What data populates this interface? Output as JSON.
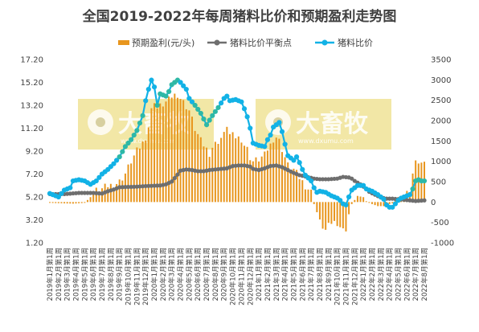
{
  "chart_data": {
    "type": "bar+line",
    "title": "全国2019-2022年每周猪料比价和预期盈利走势图",
    "legend": [
      "预期盈利(元/头)",
      "猪料比价平衡点",
      "猪料比价"
    ],
    "legend_position": "top",
    "colors": {
      "profit": "#E8961E",
      "breakeven": "#6E6E6E",
      "ratio": "#12B2E6",
      "ratio_fill": "#2EB8A6",
      "watermark_bg": "#F2E7A6"
    },
    "left_axis": {
      "ticks": [
        "1.20",
        "3.20",
        "5.20",
        "7.20",
        "9.20",
        "11.20",
        "13.20",
        "15.20",
        "17.20"
      ],
      "min": 1.2,
      "max": 17.2
    },
    "right_axis": {
      "ticks": [
        "-1000",
        "-500",
        "0",
        "500",
        "1000",
        "1500",
        "2000",
        "2500",
        "3000",
        "3500"
      ],
      "min": -1000,
      "max": 3500
    },
    "x_tick_labels": [
      "2019年1月第1周",
      "2019年2月第1周",
      "2019年3月第1周",
      "2019年4月第1周",
      "2019年5月第1周",
      "2019年6月第1周",
      "2019年7月第1周",
      "2019年8月第1周",
      "2019年9月第1周",
      "2019年10月第1周",
      "2019年11月第1周",
      "2019年12月第1周",
      "2020年1月第1周",
      "2020年2月第1周",
      "2020年3月第1周",
      "2020年4月第1周",
      "2020年5月第1周",
      "2020年6月第1周",
      "2020年7月第1周",
      "2020年8月第1周",
      "2020年9月第1周",
      "2020年10月第1周",
      "2020年11月第1周",
      "2020年12月第1周",
      "2021年1月第1周",
      "2021年2月第1周",
      "2021年3月第1周",
      "2021年4月第1周",
      "2021年5月第1周",
      "2021年6月第1周",
      "2021年7月第1周",
      "2021年8月第1周",
      "2021年9月第1周",
      "2021年10月第1周",
      "2021年11月第1周",
      "2021年12月第1周",
      "2022年1月第1周",
      "2022年2月第1周",
      "2022年3月第1周",
      "2022年4月第1周",
      "2022年5月第1周",
      "2022年6月第1周",
      "2022年7月第1周",
      "2022年8月第1周"
    ],
    "ratio_keypoints": [
      [
        0,
        5.5
      ],
      [
        3,
        5.2
      ],
      [
        5,
        5.8
      ],
      [
        7,
        6.0
      ],
      [
        8,
        6.6
      ],
      [
        10,
        6.7
      ],
      [
        12,
        6.6
      ],
      [
        14,
        6.3
      ],
      [
        16,
        6.6
      ],
      [
        18,
        7.2
      ],
      [
        20,
        7.6
      ],
      [
        22,
        8.1
      ],
      [
        24,
        8.7
      ],
      [
        26,
        9.6
      ],
      [
        28,
        10.2
      ],
      [
        30,
        11.0
      ],
      [
        32,
        12.3
      ],
      [
        33,
        13.6
      ],
      [
        34,
        14.6
      ],
      [
        35,
        15.4
      ],
      [
        36,
        14.8
      ],
      [
        37,
        13.2
      ],
      [
        38,
        14.2
      ],
      [
        40,
        14.0
      ],
      [
        41,
        14.4
      ],
      [
        42,
        15.0
      ],
      [
        44,
        15.4
      ],
      [
        45,
        15.2
      ],
      [
        47,
        14.6
      ],
      [
        48,
        13.8
      ],
      [
        50,
        13.2
      ],
      [
        52,
        12.5
      ],
      [
        53,
        12.0
      ],
      [
        54,
        11.5
      ],
      [
        55,
        11.9
      ],
      [
        56,
        12.3
      ],
      [
        58,
        13.0
      ],
      [
        60,
        13.8
      ],
      [
        61,
        14.0
      ],
      [
        62,
        13.6
      ],
      [
        64,
        13.7
      ],
      [
        66,
        13.5
      ],
      [
        67,
        12.9
      ],
      [
        68,
        12.2
      ],
      [
        69,
        11.2
      ],
      [
        70,
        9.9
      ],
      [
        72,
        9.7
      ],
      [
        74,
        9.6
      ],
      [
        75,
        10.2
      ],
      [
        76,
        10.6
      ],
      [
        77,
        11.3
      ],
      [
        78,
        11.5
      ],
      [
        79,
        11.7
      ],
      [
        80,
        10.9
      ],
      [
        81,
        9.8
      ],
      [
        82,
        8.8
      ],
      [
        84,
        8.4
      ],
      [
        85,
        8.7
      ],
      [
        86,
        8.2
      ],
      [
        87,
        7.6
      ],
      [
        88,
        7.1
      ],
      [
        90,
        6.6
      ],
      [
        91,
        6.0
      ],
      [
        92,
        5.6
      ],
      [
        93,
        5.7
      ],
      [
        95,
        5.6
      ],
      [
        97,
        5.3
      ],
      [
        99,
        5.1
      ],
      [
        100,
        4.9
      ],
      [
        101,
        4.6
      ],
      [
        102,
        4.5
      ],
      [
        103,
        5.2
      ],
      [
        104,
        5.8
      ],
      [
        106,
        6.2
      ],
      [
        108,
        6.2
      ],
      [
        109,
        5.9
      ],
      [
        110,
        5.8
      ],
      [
        111,
        5.7
      ],
      [
        113,
        5.4
      ],
      [
        115,
        5.0
      ],
      [
        116,
        4.5
      ],
      [
        117,
        4.3
      ],
      [
        118,
        4.3
      ],
      [
        119,
        4.6
      ],
      [
        120,
        4.9
      ],
      [
        121,
        5.1
      ],
      [
        122,
        5.2
      ],
      [
        123,
        5.3
      ],
      [
        124,
        5.4
      ],
      [
        125,
        5.9
      ],
      [
        126,
        6.6
      ],
      [
        127,
        6.7
      ],
      [
        128,
        6.6
      ],
      [
        129,
        6.6
      ]
    ],
    "breakeven_keypoints": [
      [
        0,
        5.45
      ],
      [
        5,
        5.45
      ],
      [
        10,
        5.55
      ],
      [
        15,
        5.55
      ],
      [
        18,
        5.5
      ],
      [
        20,
        5.7
      ],
      [
        22,
        5.85
      ],
      [
        24,
        6.05
      ],
      [
        30,
        6.1
      ],
      [
        33,
        6.15
      ],
      [
        38,
        6.2
      ],
      [
        40,
        6.3
      ],
      [
        42,
        6.55
      ],
      [
        44,
        7.15
      ],
      [
        45,
        7.5
      ],
      [
        47,
        7.6
      ],
      [
        49,
        7.55
      ],
      [
        51,
        7.45
      ],
      [
        53,
        7.45
      ],
      [
        55,
        7.55
      ],
      [
        57,
        7.6
      ],
      [
        59,
        7.65
      ],
      [
        61,
        7.7
      ],
      [
        63,
        7.9
      ],
      [
        65,
        7.95
      ],
      [
        67,
        7.95
      ],
      [
        69,
        7.85
      ],
      [
        70,
        7.65
      ],
      [
        72,
        7.55
      ],
      [
        74,
        7.7
      ],
      [
        76,
        7.9
      ],
      [
        78,
        7.95
      ],
      [
        80,
        7.8
      ],
      [
        82,
        7.55
      ],
      [
        84,
        7.3
      ],
      [
        86,
        7.1
      ],
      [
        88,
        7.0
      ],
      [
        91,
        6.8
      ],
      [
        93,
        6.75
      ],
      [
        96,
        6.75
      ],
      [
        99,
        6.8
      ],
      [
        101,
        6.95
      ],
      [
        103,
        6.9
      ],
      [
        104,
        6.8
      ],
      [
        105,
        6.6
      ],
      [
        107,
        6.3
      ],
      [
        108,
        6.1
      ],
      [
        110,
        5.65
      ],
      [
        112,
        5.4
      ],
      [
        114,
        5.15
      ],
      [
        116,
        5.05
      ],
      [
        118,
        5.05
      ],
      [
        120,
        5.0
      ],
      [
        122,
        4.95
      ],
      [
        124,
        4.9
      ],
      [
        126,
        4.85
      ],
      [
        129,
        4.9
      ]
    ],
    "profit_keypoints": [
      [
        0,
        -20
      ],
      [
        8,
        -40
      ],
      [
        12,
        -20
      ],
      [
        14,
        120
      ],
      [
        16,
        280
      ],
      [
        18,
        320
      ],
      [
        20,
        400
      ],
      [
        22,
        420
      ],
      [
        24,
        500
      ],
      [
        26,
        700
      ],
      [
        28,
        1000
      ],
      [
        30,
        1250
      ],
      [
        32,
        1450
      ],
      [
        33,
        1600
      ],
      [
        34,
        1850
      ],
      [
        35,
        2250
      ],
      [
        36,
        2500
      ],
      [
        37,
        2300
      ],
      [
        38,
        2350
      ],
      [
        40,
        2450
      ],
      [
        41,
        2500
      ],
      [
        42,
        2600
      ],
      [
        44,
        2650
      ],
      [
        45,
        2550
      ],
      [
        47,
        2350
      ],
      [
        48,
        2250
      ],
      [
        50,
        1800
      ],
      [
        52,
        1500
      ],
      [
        53,
        1400
      ],
      [
        54,
        1300
      ],
      [
        55,
        1200
      ],
      [
        56,
        1350
      ],
      [
        58,
        1500
      ],
      [
        60,
        1650
      ],
      [
        61,
        1900
      ],
      [
        62,
        1650
      ],
      [
        64,
        1600
      ],
      [
        66,
        1550
      ],
      [
        67,
        1400
      ],
      [
        68,
        1300
      ],
      [
        69,
        1100
      ],
      [
        70,
        1000
      ],
      [
        72,
        1050
      ],
      [
        74,
        1150
      ],
      [
        75,
        1300
      ],
      [
        76,
        1400
      ],
      [
        77,
        1550
      ],
      [
        78,
        1600
      ],
      [
        79,
        1500
      ],
      [
        80,
        1300
      ],
      [
        81,
        1100
      ],
      [
        82,
        900
      ],
      [
        84,
        800
      ],
      [
        85,
        700
      ],
      [
        86,
        600
      ],
      [
        87,
        500
      ],
      [
        88,
        400
      ],
      [
        90,
        250
      ],
      [
        91,
        -50
      ],
      [
        92,
        -250
      ],
      [
        93,
        -500
      ],
      [
        95,
        -700
      ],
      [
        97,
        -500
      ],
      [
        99,
        -500
      ],
      [
        100,
        -600
      ],
      [
        101,
        -700
      ],
      [
        102,
        -650
      ],
      [
        103,
        -300
      ],
      [
        104,
        -50
      ],
      [
        106,
        150
      ],
      [
        108,
        120
      ],
      [
        109,
        20
      ],
      [
        110,
        -20
      ],
      [
        111,
        -50
      ],
      [
        113,
        -100
      ],
      [
        115,
        -100
      ],
      [
        116,
        -80
      ],
      [
        117,
        -50
      ],
      [
        118,
        -30
      ],
      [
        119,
        50
      ],
      [
        120,
        120
      ],
      [
        121,
        180
      ],
      [
        122,
        200
      ],
      [
        123,
        220
      ],
      [
        124,
        250
      ],
      [
        125,
        700
      ],
      [
        126,
        950
      ],
      [
        127,
        1000
      ],
      [
        128,
        950
      ],
      [
        129,
        900
      ]
    ],
    "watermarks": [
      {
        "brand": "大畜牧",
        "domain": "www.dxumu.com"
      },
      {
        "brand": "大畜牧",
        "domain": "www.dxumu.com"
      }
    ]
  }
}
